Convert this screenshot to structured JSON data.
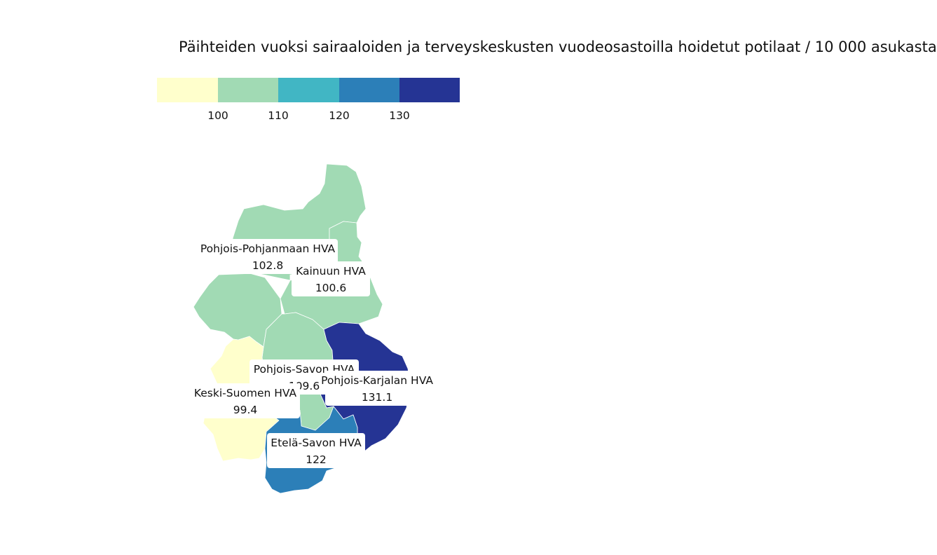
{
  "title": "Päihteiden vuoksi sairaaloiden ja terveyskeskusten vuodeosastoilla hoidetut potilaat / 10 000 asukasta",
  "legend": {
    "colors": [
      "#ffffcc",
      "#a1dab4",
      "#41b6c4",
      "#2c7fb8",
      "#253494"
    ],
    "ticks": [
      "100",
      "110",
      "120",
      "130"
    ]
  },
  "chart_data": {
    "type": "choropleth",
    "title": "Päihteiden vuoksi sairaaloiden ja terveyskeskusten vuodeosastoilla hoidetut potilaat / 10 000 asukasta",
    "breaks": [
      100,
      110,
      120,
      130
    ],
    "regions": [
      {
        "name": "Pohjois-Pohjanmaan HVA",
        "value": 102.8,
        "value_label": "102.8",
        "color": "#a1dab4"
      },
      {
        "name": "Kainuun HVA",
        "value": 100.6,
        "value_label": "100.6",
        "color": "#a1dab4"
      },
      {
        "name": "Pohjois-Savon HVA",
        "value": 109.6,
        "value_label": "109.6",
        "color": "#a1dab4"
      },
      {
        "name": "Pohjois-Karjalan HVA",
        "value": 131.1,
        "value_label": "131.1",
        "color": "#253494"
      },
      {
        "name": "Keski-Suomen HVA",
        "value": 99.4,
        "value_label": "99.4",
        "color": "#ffffcc"
      },
      {
        "name": "Etelä-Savon HVA",
        "value": 122,
        "value_label": "122",
        "color": "#2c7fb8"
      }
    ]
  }
}
